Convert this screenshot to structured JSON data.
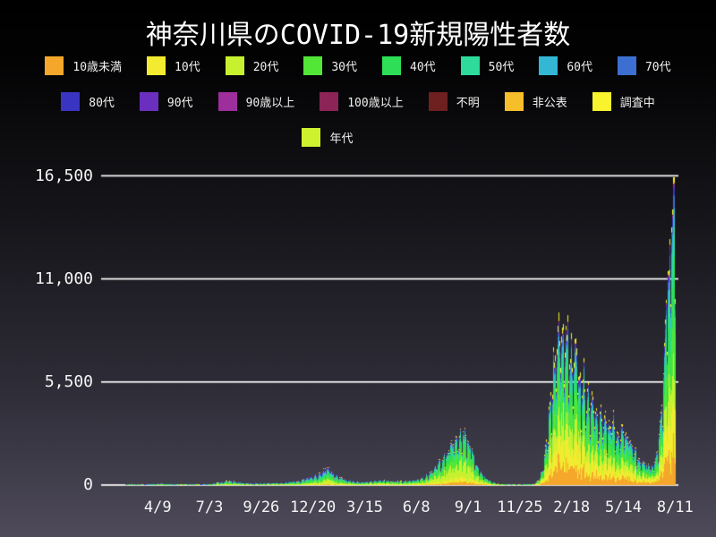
{
  "title": "神奈川県のCOVID-19新規陽性者数",
  "legend": {
    "row_splits": [
      8,
      15,
      16
    ]
  },
  "colors": {
    "background_top": "#000000",
    "background_bottom": "#4e4a5a",
    "grid": "#ffffff",
    "label_text": "#f5f5f5",
    "title_text": "#ffffff"
  },
  "chart_data": {
    "type": "bar",
    "stacked": true,
    "title": "神奈川県のCOVID-19新規陽性者数",
    "xlabel": "",
    "ylabel": "",
    "ylim": [
      0,
      16500
    ],
    "grid": "horizontal-only",
    "legend_position": "top",
    "y_ticks": [
      {
        "value": 0,
        "label": "0"
      },
      {
        "value": 5500,
        "label": "5,500"
      },
      {
        "value": 11000,
        "label": "11,000"
      },
      {
        "value": 16500,
        "label": "16,500"
      }
    ],
    "x_ticks": [
      {
        "day": 90,
        "label": "4/9"
      },
      {
        "day": 175,
        "label": "7/3"
      },
      {
        "day": 260,
        "label": "9/26"
      },
      {
        "day": 345,
        "label": "12/20"
      },
      {
        "day": 430,
        "label": "3/15"
      },
      {
        "day": 515,
        "label": "6/8"
      },
      {
        "day": 600,
        "label": "9/1"
      },
      {
        "day": 685,
        "label": "11/25"
      },
      {
        "day": 770,
        "label": "2/18"
      },
      {
        "day": 855,
        "label": "5/14"
      },
      {
        "day": 940,
        "label": "8/11"
      }
    ],
    "series": [
      {
        "name": "10歳未満",
        "color": "#f5a72b"
      },
      {
        "name": "10代",
        "color": "#f3eb2f"
      },
      {
        "name": "20代",
        "color": "#c7f12f"
      },
      {
        "name": "30代",
        "color": "#52e636"
      },
      {
        "name": "40代",
        "color": "#2ede57"
      },
      {
        "name": "50代",
        "color": "#2edb9b"
      },
      {
        "name": "60代",
        "color": "#34b6d5"
      },
      {
        "name": "70代",
        "color": "#3c6fd1"
      },
      {
        "name": "80代",
        "color": "#3a34c3"
      },
      {
        "name": "90代",
        "color": "#6b2fbf"
      },
      {
        "name": "90歳以上",
        "color": "#9d2e9c"
      },
      {
        "name": "100歳以上",
        "color": "#8c2458"
      },
      {
        "name": "不明",
        "color": "#6e2020"
      },
      {
        "name": "非公表",
        "color": "#f7be2b"
      },
      {
        "name": "調査中",
        "color": "#f8f32d"
      },
      {
        "name": "年代",
        "color": "#cff22f"
      }
    ],
    "daily_total_envelope": [
      [
        0,
        0
      ],
      [
        28,
        0
      ],
      [
        40,
        3
      ],
      [
        55,
        8
      ],
      [
        70,
        25
      ],
      [
        85,
        55
      ],
      [
        95,
        85
      ],
      [
        103,
        62
      ],
      [
        113,
        34
      ],
      [
        126,
        17
      ],
      [
        140,
        12
      ],
      [
        155,
        18
      ],
      [
        170,
        45
      ],
      [
        185,
        110
      ],
      [
        197,
        175
      ],
      [
        205,
        245
      ],
      [
        213,
        200
      ],
      [
        223,
        140
      ],
      [
        236,
        95
      ],
      [
        250,
        85
      ],
      [
        265,
        95
      ],
      [
        280,
        105
      ],
      [
        292,
        125
      ],
      [
        302,
        150
      ],
      [
        312,
        200
      ],
      [
        322,
        255
      ],
      [
        332,
        340
      ],
      [
        342,
        445
      ],
      [
        352,
        580
      ],
      [
        360,
        750
      ],
      [
        366,
        940
      ],
      [
        372,
        815
      ],
      [
        380,
        560
      ],
      [
        390,
        380
      ],
      [
        400,
        270
      ],
      [
        410,
        190
      ],
      [
        420,
        150
      ],
      [
        432,
        165
      ],
      [
        444,
        215
      ],
      [
        456,
        248
      ],
      [
        468,
        235
      ],
      [
        480,
        205
      ],
      [
        492,
        185
      ],
      [
        504,
        230
      ],
      [
        516,
        300
      ],
      [
        528,
        430
      ],
      [
        540,
        700
      ],
      [
        552,
        1150
      ],
      [
        564,
        1750
      ],
      [
        576,
        2400
      ],
      [
        584,
        2700
      ],
      [
        591,
        2800
      ],
      [
        597,
        2550
      ],
      [
        605,
        1900
      ],
      [
        613,
        1200
      ],
      [
        621,
        650
      ],
      [
        630,
        320
      ],
      [
        640,
        140
      ],
      [
        650,
        65
      ],
      [
        660,
        38
      ],
      [
        672,
        26
      ],
      [
        686,
        30
      ],
      [
        698,
        42
      ],
      [
        708,
        70
      ],
      [
        716,
        260
      ],
      [
        722,
        900
      ],
      [
        727,
        2000
      ],
      [
        731,
        3300
      ],
      [
        736,
        5000
      ],
      [
        741,
        6700
      ],
      [
        746,
        8100
      ],
      [
        751,
        8600
      ],
      [
        756,
        8650
      ],
      [
        760,
        8200
      ],
      [
        765,
        7500
      ],
      [
        770,
        7000
      ],
      [
        774,
        7300
      ],
      [
        779,
        6300
      ],
      [
        784,
        5400
      ],
      [
        789,
        5700
      ],
      [
        794,
        5000
      ],
      [
        799,
        4400
      ],
      [
        804,
        4650
      ],
      [
        809,
        4100
      ],
      [
        814,
        3600
      ],
      [
        819,
        3900
      ],
      [
        824,
        3300
      ],
      [
        829,
        2950
      ],
      [
        834,
        3250
      ],
      [
        839,
        3450
      ],
      [
        844,
        3050
      ],
      [
        849,
        2750
      ],
      [
        854,
        3100
      ],
      [
        859,
        2800
      ],
      [
        864,
        2400
      ],
      [
        869,
        2100
      ],
      [
        874,
        1800
      ],
      [
        879,
        1500
      ],
      [
        884,
        1300
      ],
      [
        889,
        1100
      ],
      [
        894,
        1000
      ],
      [
        899,
        950
      ],
      [
        904,
        1150
      ],
      [
        909,
        1700
      ],
      [
        914,
        2800
      ],
      [
        918,
        4600
      ],
      [
        922,
        7200
      ],
      [
        926,
        9800
      ],
      [
        929,
        11700
      ],
      [
        932,
        13300
      ],
      [
        935,
        14900
      ],
      [
        938,
        16350
      ],
      [
        941,
        14300
      ]
    ],
    "age_share_anchors": [
      {
        "day": 0,
        "shares": [
          0.02,
          0.03,
          0.2,
          0.16,
          0.15,
          0.14,
          0.1,
          0.08,
          0.06,
          0.025,
          0.006,
          0.001,
          0.008,
          0.01,
          0.005,
          0.005
        ]
      },
      {
        "day": 320,
        "shares": [
          0.03,
          0.05,
          0.19,
          0.16,
          0.15,
          0.14,
          0.09,
          0.07,
          0.055,
          0.025,
          0.006,
          0.001,
          0.008,
          0.01,
          0.01,
          0.005
        ]
      },
      {
        "day": 560,
        "shares": [
          0.055,
          0.09,
          0.29,
          0.2,
          0.16,
          0.1,
          0.045,
          0.02,
          0.012,
          0.004,
          0.002,
          0.001,
          0.004,
          0.007,
          0.008,
          0.002
        ]
      },
      {
        "day": 650,
        "shares": [
          0.06,
          0.095,
          0.28,
          0.195,
          0.16,
          0.1,
          0.045,
          0.02,
          0.012,
          0.004,
          0.002,
          0.001,
          0.004,
          0.007,
          0.013,
          0.002
        ]
      },
      {
        "day": 735,
        "shares": [
          0.13,
          0.17,
          0.14,
          0.15,
          0.15,
          0.09,
          0.055,
          0.035,
          0.022,
          0.009,
          0.003,
          0.001,
          0.004,
          0.009,
          0.025,
          0.007
        ]
      },
      {
        "day": 941,
        "shares": [
          0.12,
          0.16,
          0.16,
          0.16,
          0.15,
          0.1,
          0.06,
          0.035,
          0.02,
          0.008,
          0.003,
          0.001,
          0.003,
          0.007,
          0.012,
          0.001
        ]
      }
    ],
    "wave_peaks_reference": [
      {
        "around_day": 366,
        "total": 940
      },
      {
        "around_day": 591,
        "total": 2800
      },
      {
        "around_day": 756,
        "total": 8650
      },
      {
        "around_day": 938,
        "total": 16350
      }
    ]
  }
}
